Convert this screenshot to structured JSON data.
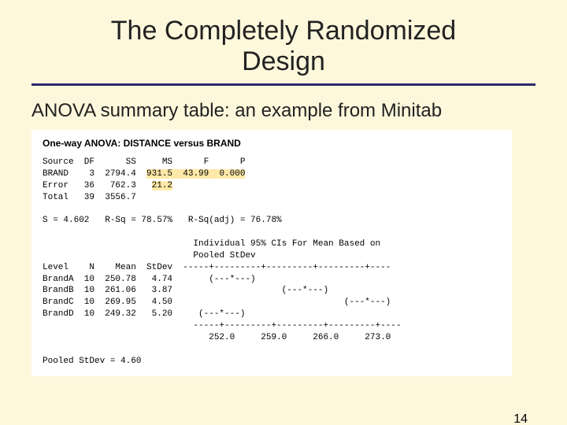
{
  "title_line1": "The Completely Randomized",
  "title_line2": "Design",
  "subtitle": "ANOVA summary table: an example from Minitab",
  "minitab": {
    "heading": "One-way ANOVA: DISTANCE versus BRAND",
    "header_row": "Source  DF      SS     MS      F      P",
    "brand_left": "BRAND    3  2794.4  ",
    "brand_hl": "931.5  43.99  0.000",
    "error_left": "Error   36   762.3   ",
    "error_hl": "21.2",
    "total_row": "Total   39  3556.7",
    "stats_row": "S = 4.602   R-Sq = 78.57%   R-Sq(adj) = 76.78%",
    "ci_line1": "                             Individual 95% CIs For Mean Based on",
    "ci_line2": "                             Pooled StDev",
    "level_hdr": "Level    N    Mean  StDev  -----+---------+---------+---------+----",
    "row_a": "BrandA  10  250.78   4.74       (---*---)",
    "row_b": "BrandB  10  261.06   3.87                     (---*---)",
    "row_c": "BrandC  10  269.95   4.50                                 (---*---)",
    "row_d": "BrandD  10  249.32   5.20     (---*---)",
    "axis_rule": "                             -----+---------+---------+---------+----",
    "axis_vals": "                                252.0     259.0     266.0     273.0",
    "pooled": "Pooled StDev = 4.60"
  },
  "page_number": "14",
  "colors": {
    "background": "#fdf8dc",
    "rule": "#2a2a6a",
    "highlight": "#ffe9a8",
    "box_bg": "#ffffff"
  }
}
